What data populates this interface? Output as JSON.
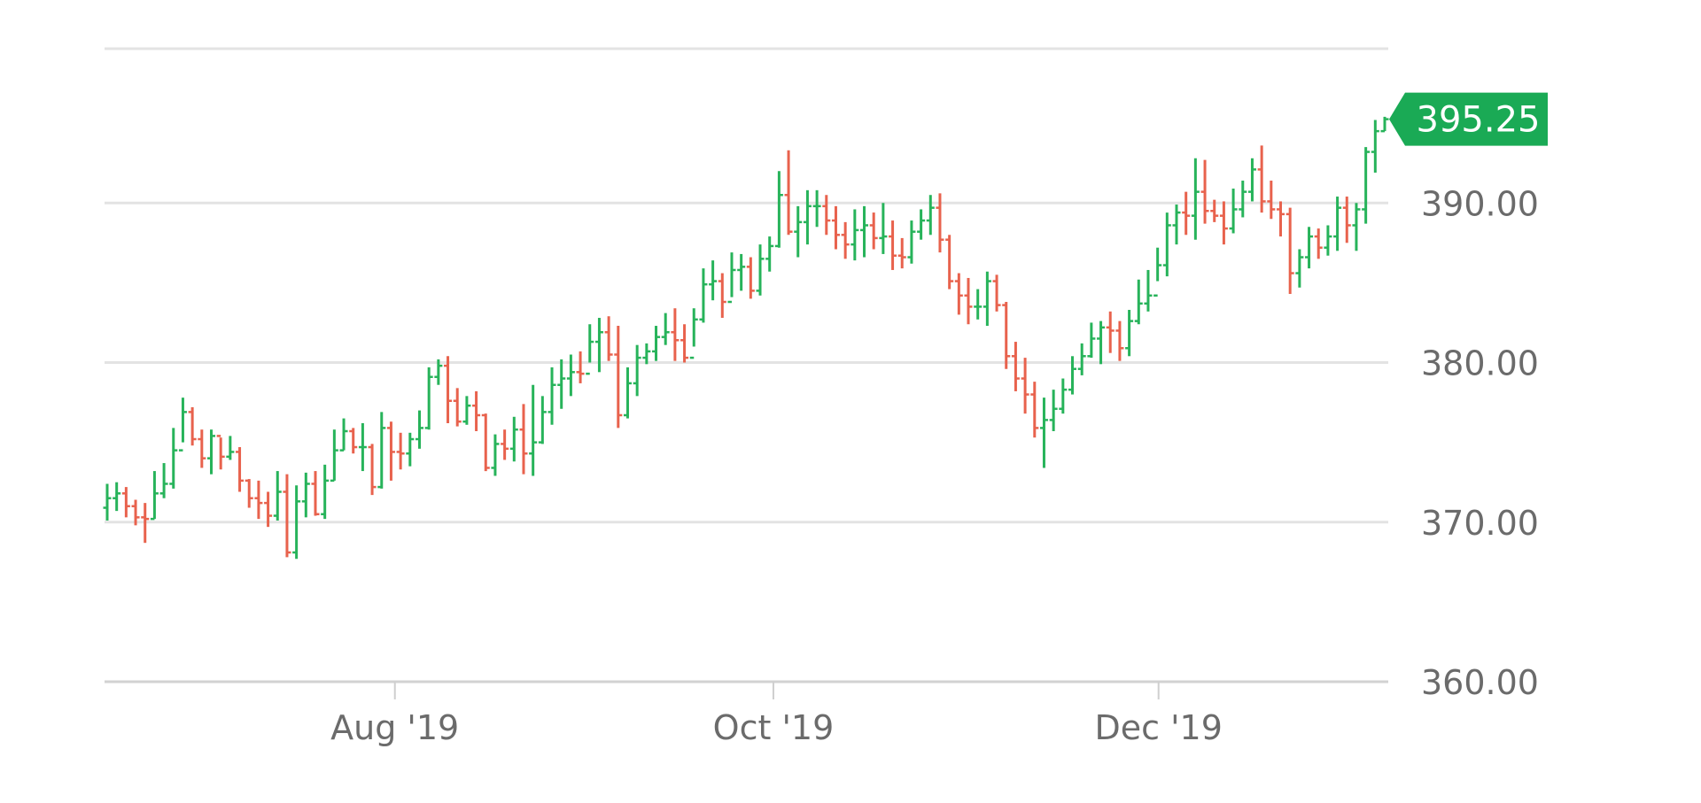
{
  "chart_data": {
    "type": "ohlc",
    "yticks": [
      "360.00",
      "370.00",
      "380.00",
      "390.00"
    ],
    "ytick_values": [
      360,
      370,
      380,
      390
    ],
    "ylim": [
      360,
      400
    ],
    "xticks": [
      "Aug '19",
      "Oct '19",
      "Dec '19"
    ],
    "xtick_positions": [
      30.4,
      70.4,
      111.1
    ],
    "current_price": "395.25",
    "current_price_value": 395.25,
    "grid": true,
    "colors": {
      "up": "#27b35a",
      "down": "#e8624d",
      "tag": "#1aaa55",
      "grid": "#e3e3e3"
    },
    "close": [
      371.5,
      371.8,
      371.0,
      370.3,
      370.2,
      371.8,
      372.4,
      374.5,
      376.9,
      375.2,
      374.0,
      375.4,
      374.1,
      374.4,
      372.6,
      371.5,
      371.2,
      370.4,
      371.9,
      368.1,
      371.3,
      372.4,
      370.5,
      372.6,
      374.5,
      375.7,
      374.7,
      374.7,
      372.2,
      375.9,
      374.4,
      374.3,
      375.2,
      375.9,
      379.1,
      379.8,
      377.6,
      376.3,
      377.3,
      376.7,
      373.4,
      374.9,
      374.6,
      375.8,
      374.3,
      375.0,
      376.9,
      378.6,
      379.0,
      379.4,
      379.3,
      381.3,
      381.9,
      380.5,
      376.7,
      378.7,
      380.3,
      380.7,
      381.6,
      381.9,
      381.4,
      380.3,
      382.7,
      384.9,
      385.1,
      383.8,
      385.8,
      386.0,
      384.5,
      386.5,
      387.3,
      390.5,
      388.2,
      388.8,
      389.8,
      389.8,
      388.9,
      388.0,
      387.4,
      388.3,
      388.6,
      387.8,
      387.9,
      386.7,
      386.6,
      388.2,
      388.9,
      389.7,
      387.7,
      385.1,
      384.2,
      383.5,
      383.5,
      385.1,
      383.6,
      380.4,
      379.0,
      378.0,
      375.9,
      376.4,
      377.1,
      378.3,
      379.6,
      380.4,
      381.5,
      382.2,
      382.0,
      380.9,
      382.6,
      383.7,
      384.2,
      386.1,
      388.6,
      389.4,
      389.2,
      390.7,
      389.5,
      389.2,
      388.4,
      389.6,
      390.7,
      392.1,
      390.1,
      389.6,
      389.3,
      385.6,
      386.6,
      387.9,
      387.2,
      387.9,
      389.7,
      388.6,
      389.6,
      393.2,
      394.5,
      395.25
    ],
    "high": [
      372.4,
      372.5,
      372.2,
      371.4,
      371.2,
      373.2,
      373.7,
      375.9,
      377.8,
      377.2,
      375.8,
      375.8,
      375.3,
      375.4,
      374.7,
      372.7,
      372.6,
      371.9,
      373.2,
      373.0,
      372.3,
      373.1,
      373.2,
      373.6,
      375.8,
      376.5,
      375.9,
      376.2,
      374.9,
      376.9,
      376.3,
      375.6,
      375.6,
      377.0,
      379.7,
      380.2,
      380.4,
      378.4,
      377.9,
      378.2,
      376.8,
      375.5,
      375.8,
      376.6,
      377.4,
      378.6,
      377.9,
      379.7,
      380.2,
      380.5,
      380.7,
      382.4,
      382.8,
      382.9,
      382.3,
      379.7,
      381.1,
      381.2,
      382.3,
      383.1,
      383.4,
      382.4,
      383.4,
      385.9,
      386.4,
      385.6,
      386.9,
      386.8,
      386.6,
      387.4,
      387.9,
      392.0,
      393.3,
      389.8,
      390.8,
      390.8,
      390.5,
      389.8,
      388.8,
      389.6,
      389.8,
      389.4,
      390.0,
      388.9,
      387.8,
      388.9,
      389.6,
      390.5,
      390.6,
      388.0,
      385.6,
      385.3,
      384.6,
      385.7,
      385.5,
      383.8,
      381.3,
      380.3,
      378.8,
      377.8,
      378.3,
      379.0,
      380.4,
      381.2,
      382.5,
      382.6,
      383.2,
      382.6,
      383.3,
      385.2,
      385.8,
      387.2,
      389.4,
      389.9,
      390.7,
      392.8,
      392.7,
      390.2,
      390.1,
      390.9,
      391.4,
      392.8,
      393.6,
      391.4,
      390.1,
      389.7,
      387.1,
      388.5,
      388.4,
      388.6,
      390.4,
      390.4,
      390.0,
      393.5,
      395.2,
      395.4
    ],
    "low": [
      370.1,
      370.7,
      370.3,
      369.8,
      368.7,
      370.2,
      371.5,
      372.1,
      375.0,
      374.8,
      373.4,
      373.0,
      373.3,
      373.9,
      371.9,
      370.9,
      370.2,
      369.7,
      370.1,
      367.8,
      367.7,
      370.3,
      370.4,
      370.2,
      372.6,
      374.5,
      374.3,
      373.2,
      371.7,
      372.1,
      372.6,
      373.3,
      373.5,
      374.6,
      375.8,
      378.6,
      376.2,
      376.0,
      376.1,
      375.7,
      373.2,
      372.9,
      373.9,
      373.8,
      373.0,
      372.9,
      374.9,
      376.1,
      377.1,
      377.9,
      378.7,
      380.0,
      379.4,
      380.1,
      375.9,
      376.5,
      377.9,
      379.9,
      380.1,
      381.1,
      380.1,
      380.0,
      381.0,
      382.5,
      383.9,
      382.8,
      384.1,
      384.5,
      384.0,
      384.2,
      385.7,
      387.2,
      388.0,
      386.6,
      387.4,
      388.5,
      388.0,
      387.1,
      386.5,
      386.4,
      386.6,
      387.1,
      386.8,
      385.8,
      385.9,
      386.2,
      387.7,
      388.0,
      386.9,
      384.6,
      383.0,
      382.4,
      382.7,
      382.3,
      383.2,
      379.6,
      378.2,
      376.8,
      375.3,
      373.4,
      375.7,
      376.8,
      378.0,
      379.2,
      380.3,
      379.9,
      380.6,
      380.1,
      380.4,
      382.4,
      383.2,
      385.1,
      385.4,
      387.4,
      388.0,
      387.7,
      388.7,
      388.8,
      387.4,
      388.1,
      389.1,
      390.1,
      389.4,
      389.0,
      387.9,
      384.3,
      384.7,
      385.9,
      386.5,
      386.7,
      387.0,
      387.5,
      387.0,
      388.7,
      391.9,
      394.5
    ]
  }
}
